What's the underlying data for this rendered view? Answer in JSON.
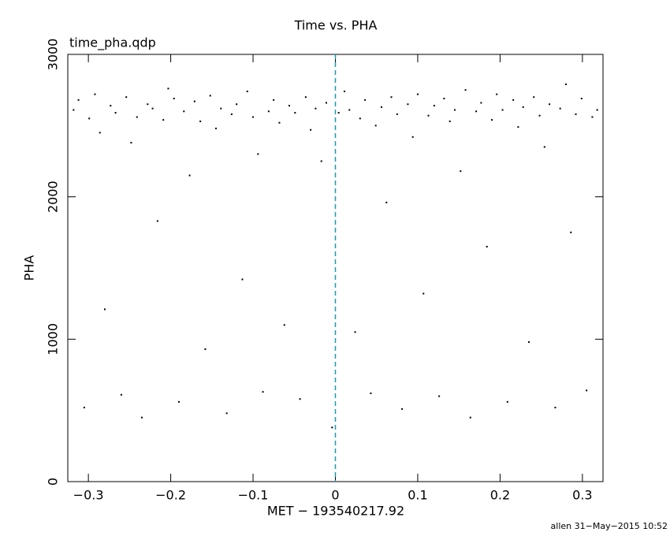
{
  "chart_data": {
    "type": "scatter",
    "title": "Time vs. PHA",
    "subtitle": "time_pha.qdp",
    "x_label": "MET − 193540217.92",
    "y_label": "PHA",
    "footer": "allen 31−May−2015 10:52",
    "color": "#000000",
    "xlim": [
      -0.325,
      0.325
    ],
    "ylim": [
      0,
      3000
    ],
    "xticks": [
      {
        "value": -0.3,
        "label": "−0.3"
      },
      {
        "value": -0.2,
        "label": "−0.2"
      },
      {
        "value": -0.1,
        "label": "−0.1"
      },
      0,
      0.1,
      0.2,
      0.3
    ],
    "yticks": [
      0,
      1000,
      2000,
      3000
    ],
    "vline": {
      "x": 0,
      "color": "#1f9aa8"
    },
    "x": [
      -0.318,
      -0.312,
      -0.305,
      -0.299,
      -0.292,
      -0.286,
      -0.28,
      -0.273,
      -0.267,
      -0.26,
      -0.254,
      -0.248,
      -0.241,
      -0.235,
      -0.228,
      -0.222,
      -0.216,
      -0.209,
      -0.203,
      -0.196,
      -0.19,
      -0.184,
      -0.177,
      -0.171,
      -0.164,
      -0.158,
      -0.152,
      -0.145,
      -0.139,
      -0.132,
      -0.126,
      -0.12,
      -0.113,
      -0.107,
      -0.1,
      -0.094,
      -0.088,
      -0.081,
      -0.075,
      -0.068,
      -0.062,
      -0.056,
      -0.049,
      -0.043,
      -0.036,
      -0.03,
      -0.024,
      -0.017,
      -0.011,
      -0.004,
      0.004,
      0.011,
      0.017,
      0.024,
      0.03,
      0.036,
      0.043,
      0.049,
      0.056,
      0.062,
      0.068,
      0.075,
      0.081,
      0.088,
      0.094,
      0.1,
      0.107,
      0.113,
      0.12,
      0.126,
      0.132,
      0.139,
      0.145,
      0.152,
      0.158,
      0.164,
      0.171,
      0.177,
      0.184,
      0.19,
      0.196,
      0.203,
      0.209,
      0.216,
      0.222,
      0.228,
      0.235,
      0.241,
      0.248,
      0.254,
      0.26,
      0.267,
      0.273,
      0.28,
      0.286,
      0.292,
      0.299,
      0.305,
      0.312,
      0.318
    ],
    "values": [
      2610,
      2680,
      520,
      2550,
      2720,
      2450,
      1210,
      2640,
      2590,
      610,
      2700,
      2380,
      2560,
      450,
      2650,
      2620,
      1830,
      2540,
      2760,
      2690,
      560,
      2600,
      2150,
      2670,
      2530,
      930,
      2710,
      2480,
      2620,
      480,
      2580,
      2650,
      1420,
      2740,
      2560,
      2300,
      630,
      2600,
      2680,
      2520,
      1100,
      2640,
      2590,
      580,
      2700,
      2470,
      2620,
      2250,
      2660,
      380,
      2590,
      2740,
      2610,
      1050,
      2550,
      2680,
      620,
      2500,
      2630,
      1960,
      2700,
      2580,
      510,
      2650,
      2420,
      2720,
      1320,
      2570,
      2640,
      600,
      2690,
      2530,
      2610,
      2180,
      2750,
      450,
      2600,
      2660,
      1650,
      2540,
      2720,
      2610,
      560,
      2680,
      2490,
      2630,
      980,
      2700,
      2570,
      2350,
      2650,
      520,
      2620,
      2790,
      1750,
      2580,
      2690,
      640,
      2560,
      2610
    ]
  }
}
